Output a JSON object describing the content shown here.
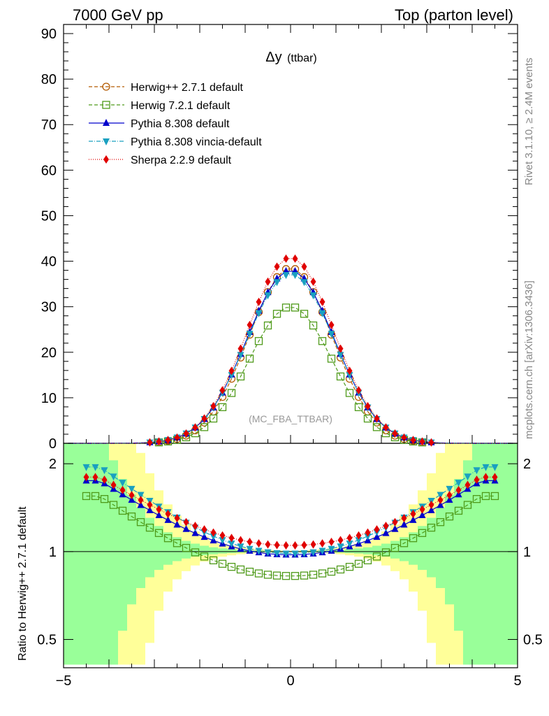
{
  "header": {
    "left": "7000 GeV pp",
    "right": "Top (parton level)"
  },
  "side": {
    "rivet": "Rivet 3.1.10, ≥ 2.4M events",
    "source": "mcplots.cern.ch [arXiv:1306.3436]"
  },
  "chart_data": [
    {
      "type": "line",
      "title": "Δy (ttbar)",
      "title_main": "Δy",
      "title_sub": "(ttbar)",
      "watermark": "(MC_FBA_TTBAR)",
      "xlim": [
        -5,
        5
      ],
      "ylim": [
        0,
        92
      ],
      "yticks": [
        0,
        10,
        20,
        30,
        40,
        50,
        60,
        70,
        80,
        90
      ],
      "legend_position": "top-left",
      "series": [
        {
          "name": "Herwig++ 2.7.1 default",
          "color": "#b35a00",
          "marker": "open-circle",
          "dash": "5,3",
          "peak": 38.5,
          "width": 1.0
        },
        {
          "name": "Herwig 7.2.1 default",
          "color": "#4f9a1a",
          "marker": "open-square",
          "dash": "5,3",
          "peak": 30.0,
          "width": 1.0
        },
        {
          "name": "Pythia 8.308 default",
          "color": "#0000cc",
          "marker": "triangle-up",
          "dash": "",
          "peak": 38.0,
          "width": 1.04
        },
        {
          "name": "Pythia 8.308 vincia-default",
          "color": "#1aa0c0",
          "marker": "triangle-down",
          "dash": "6,2,1,2",
          "peak": 37.2,
          "width": 1.05
        },
        {
          "name": "Sherpa 2.2.9 default",
          "color": "#e00000",
          "marker": "diamond",
          "dash": "1,2",
          "peak": 40.8,
          "width": 1.03
        }
      ]
    },
    {
      "type": "line",
      "ylabel": "Ratio to Herwig++ 2.7.1 default",
      "xlim": [
        -5,
        5
      ],
      "ylim": [
        0.4,
        2.35
      ],
      "xticks": [
        -5,
        0,
        5
      ],
      "yticks": [
        0.5,
        1,
        2
      ],
      "ratio_center": [
        1.0,
        0.825,
        0.975,
        0.985,
        1.05
      ],
      "ratio_edge": [
        1.0,
        1.55,
        1.75,
        1.95,
        1.8
      ],
      "bands": [
        {
          "name": "inner",
          "color": "#99ff99"
        },
        {
          "name": "outer",
          "color": "#ffff99"
        }
      ]
    }
  ]
}
